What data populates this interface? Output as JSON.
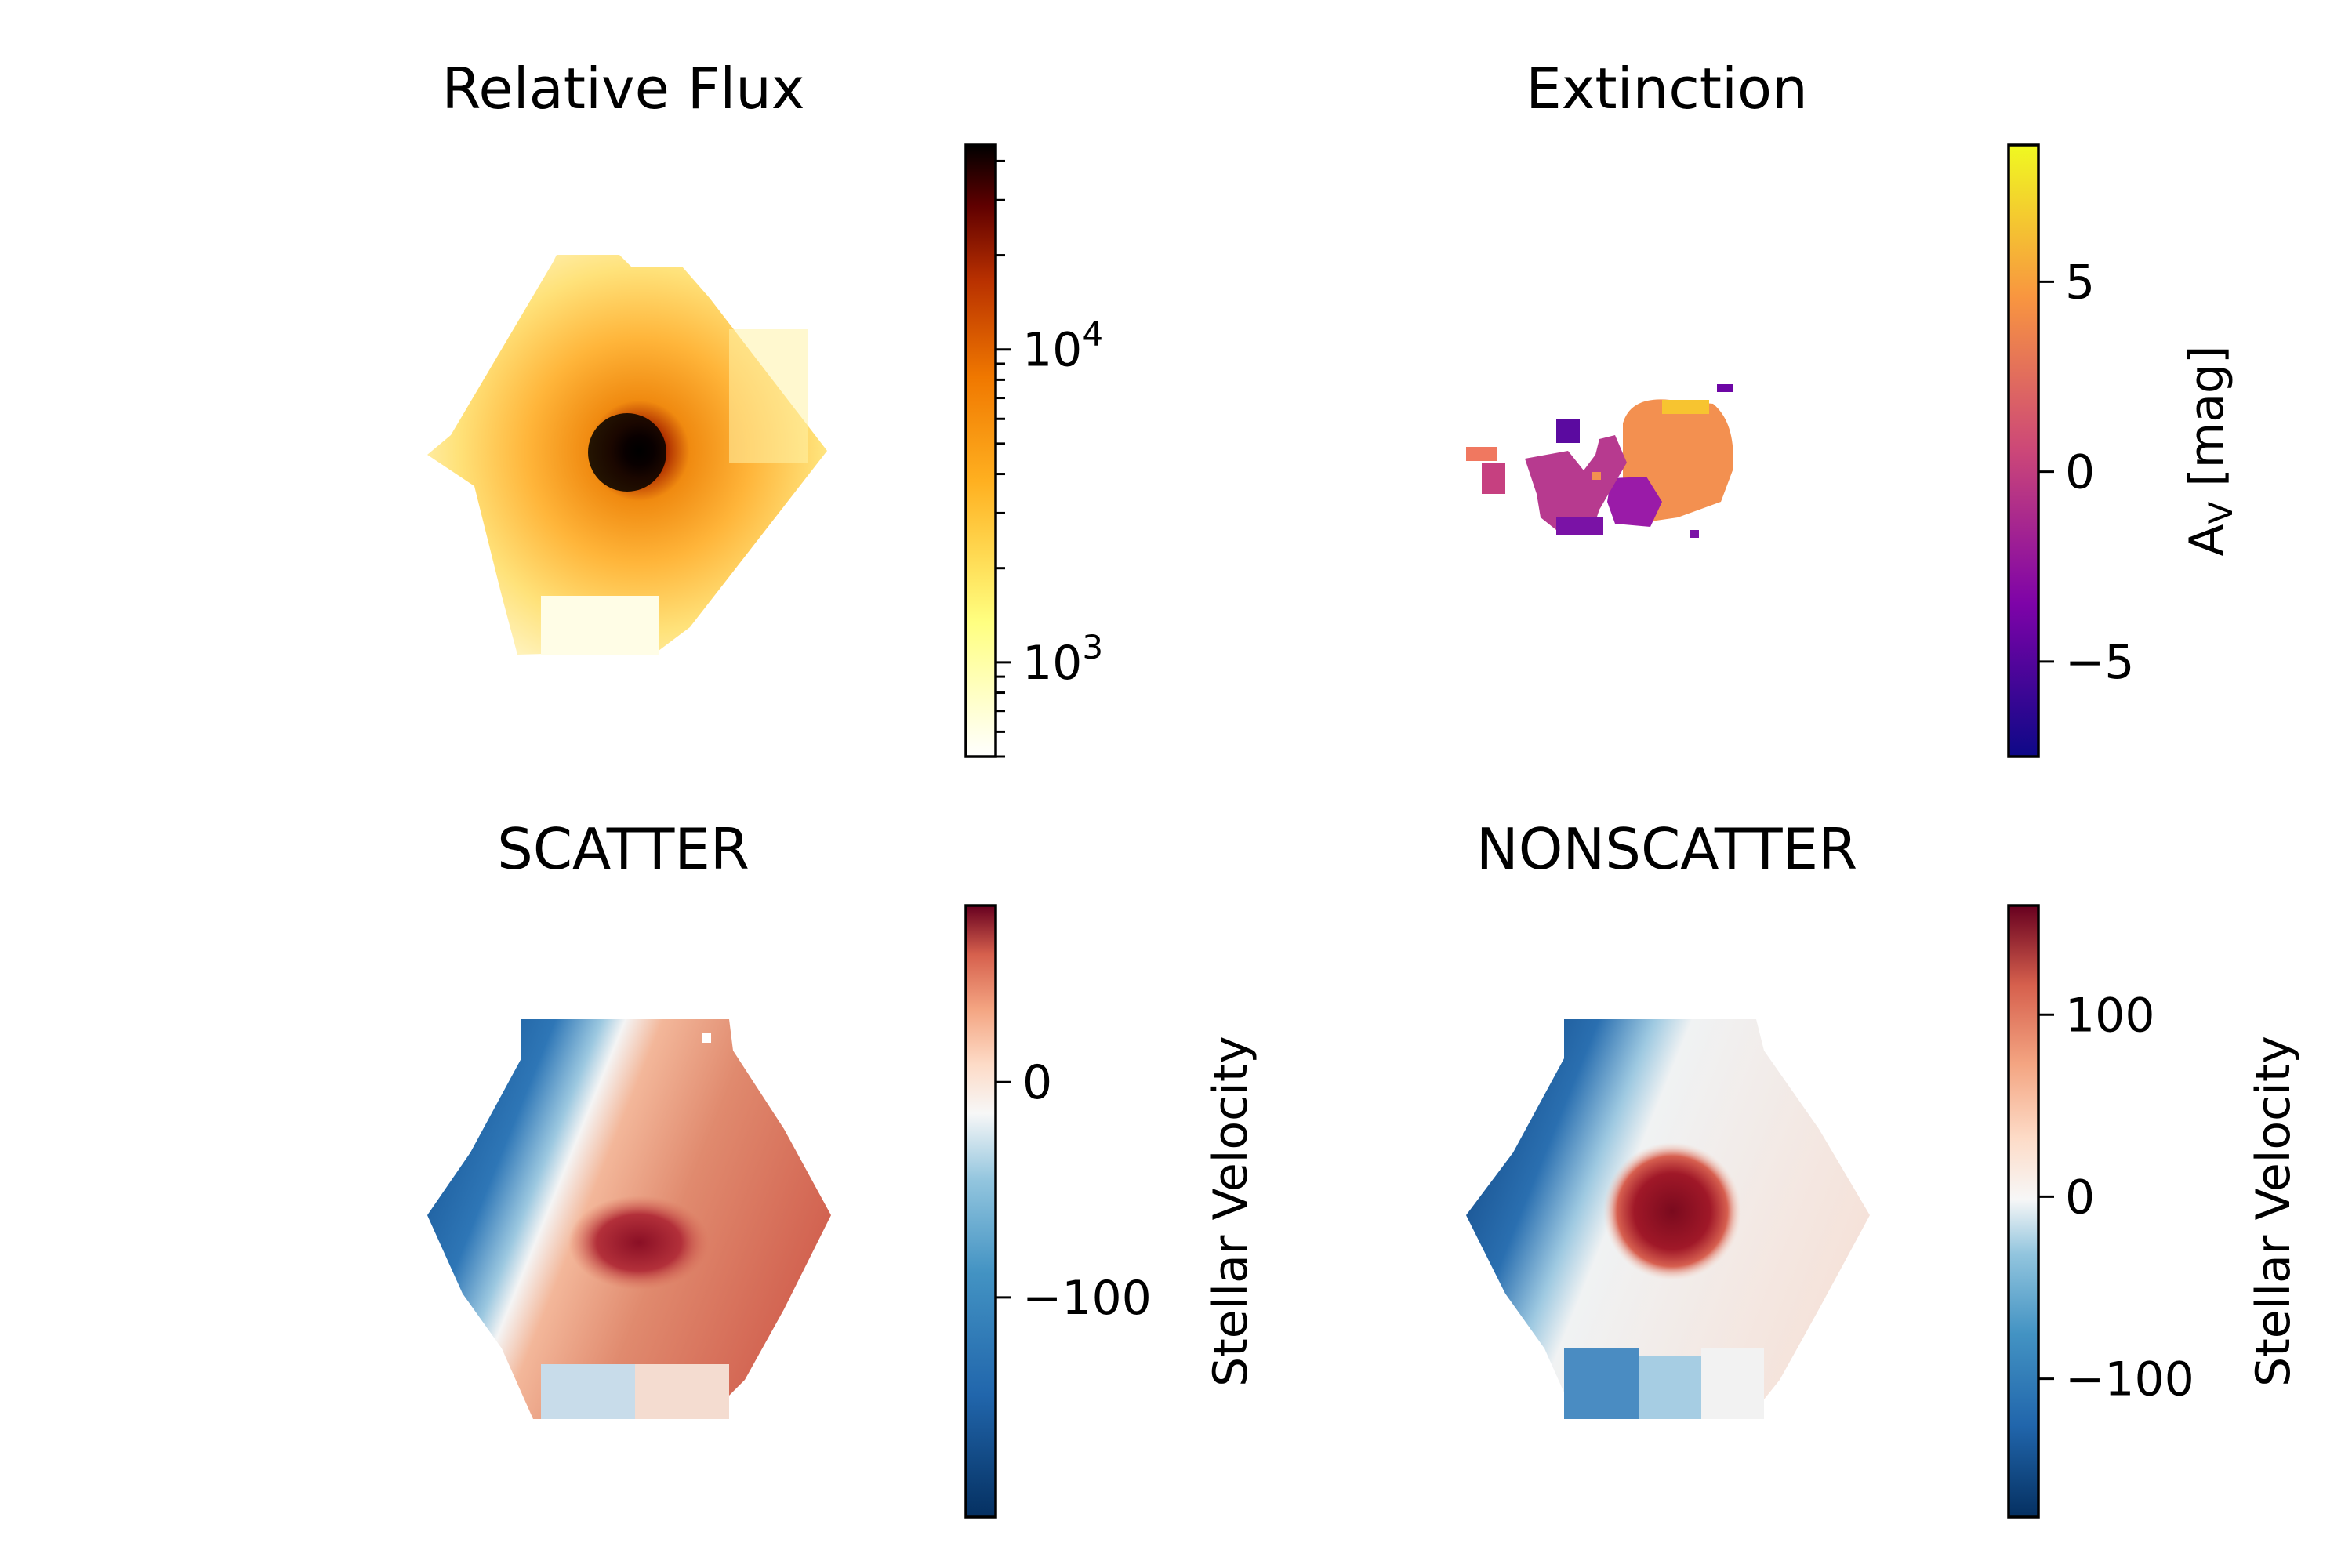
{
  "figure": {
    "panels": [
      {
        "id": "flux",
        "title": "Relative Flux"
      },
      {
        "id": "extinction",
        "title": "Extinction"
      },
      {
        "id": "scatter",
        "title": "SCATTER"
      },
      {
        "id": "nonscatter",
        "title": "NONSCATTER"
      }
    ]
  },
  "chart_data": [
    {
      "type": "heatmap",
      "title": "Relative Flux",
      "description_of_map": "hexagonal IFU map, bright compact core, flux decreasing outward",
      "colormap": "afmhot_r",
      "scale": "log",
      "colorbar": {
        "label": "",
        "range": [
          500,
          45000
        ],
        "ticks": [
          {
            "value": 1000,
            "label_base": "10",
            "label_exp": "3"
          },
          {
            "value": 10000,
            "label_base": "10",
            "label_exp": "4"
          }
        ]
      },
      "map": {
        "core_value": 45000,
        "outer_value": 550
      }
    },
    {
      "type": "heatmap",
      "title": "Extinction",
      "colormap": "plasma",
      "scale": "linear",
      "colorbar": {
        "label_main": "A",
        "label_sub": "V",
        "label_rest": " [mag]",
        "range": [
          -7.5,
          8.6
        ],
        "ticks": [
          {
            "value": 5,
            "label": "5"
          },
          {
            "value": 0,
            "label": "0"
          },
          {
            "value": -5,
            "label": "−5"
          }
        ]
      },
      "map": {
        "blob_values": [
          4,
          1,
          -2,
          -6
        ]
      }
    },
    {
      "type": "heatmap",
      "title": "SCATTER",
      "colormap": "RdBu_r",
      "scale": "linear",
      "colorbar": {
        "label": "Stellar Velocity",
        "range": [
          -202,
          82
        ],
        "ticks": [
          {
            "value": 0,
            "label": "0"
          },
          {
            "value": -100,
            "label": "−100"
          }
        ]
      },
      "map": {
        "min_value": -200,
        "max_value": 80
      }
    },
    {
      "type": "heatmap",
      "title": "NONSCATTER",
      "colormap": "RdBu_r",
      "scale": "linear",
      "colorbar": {
        "label": "Stellar Velocity",
        "range": [
          -176,
          160
        ],
        "ticks": [
          {
            "value": 100,
            "label": "100"
          },
          {
            "value": 0,
            "label": "0"
          },
          {
            "value": -100,
            "label": "−100"
          }
        ]
      },
      "map": {
        "min_value": -170,
        "max_value": 155
      }
    }
  ]
}
